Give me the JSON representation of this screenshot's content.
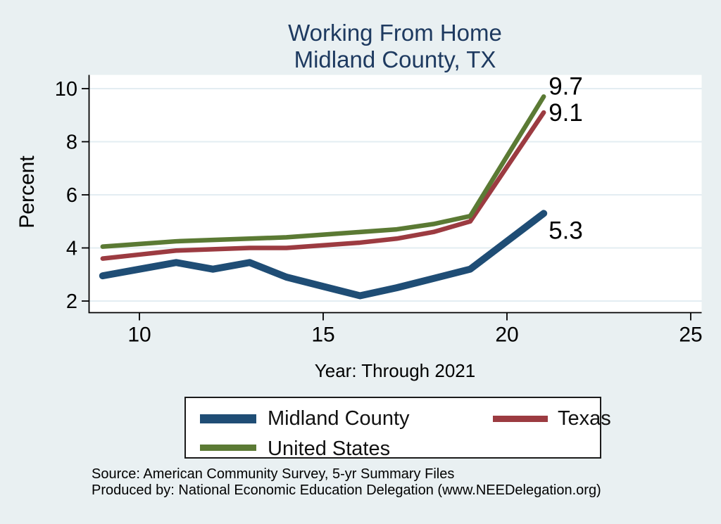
{
  "title": {
    "line1": "Working From Home",
    "line2": "Midland County, TX"
  },
  "colors": {
    "background": "#e9f0f2",
    "plot_background": "#ffffff",
    "gridline": "#e3edf2",
    "axis": "#000000",
    "title_text": "#1e3a60",
    "tick_text": "#000000",
    "midland_county": "#1f4d75",
    "texas": "#9c3b41",
    "united_states": "#5b7a34"
  },
  "chart_data": {
    "type": "line",
    "title": "Working From Home — Midland County, TX",
    "xlabel": "Year: Through 2021",
    "ylabel": "Percent",
    "x": [
      9,
      10,
      11,
      12,
      13,
      14,
      15,
      16,
      17,
      18,
      19,
      20,
      21
    ],
    "x_years_full": [
      2009,
      2010,
      2011,
      2012,
      2013,
      2014,
      2015,
      2016,
      2017,
      2018,
      2019,
      2020,
      2021
    ],
    "series": [
      {
        "name": "Midland County",
        "color": "#1f4d75",
        "values": [
          2.95,
          3.2,
          3.45,
          3.2,
          3.45,
          2.9,
          2.55,
          2.2,
          2.5,
          2.85,
          3.2,
          4.25,
          5.3
        ],
        "end_label": "5.3"
      },
      {
        "name": "Texas",
        "color": "#9c3b41",
        "values": [
          3.6,
          3.75,
          3.9,
          3.95,
          4.0,
          4.0,
          4.1,
          4.2,
          4.35,
          4.6,
          5.0,
          7.05,
          9.1
        ],
        "end_label": "9.1"
      },
      {
        "name": "United States",
        "color": "#5b7a34",
        "values": [
          4.05,
          4.15,
          4.25,
          4.3,
          4.35,
          4.4,
          4.5,
          4.6,
          4.7,
          4.9,
          5.2,
          7.45,
          9.7
        ],
        "end_label": "9.7"
      }
    ],
    "x_ticks": [
      10,
      15,
      20,
      25
    ],
    "x_tick_labels": [
      "10",
      "15",
      "20",
      "25"
    ],
    "y_ticks": [
      2,
      4,
      6,
      8,
      10
    ],
    "y_tick_labels": [
      "2",
      "4",
      "6",
      "8",
      "10"
    ],
    "xlim": [
      8.6,
      25.3
    ],
    "ylim": [
      1.55,
      10.55
    ],
    "grid": true,
    "legend_position": "bottom"
  },
  "legend": {
    "items": [
      {
        "label": "Midland County",
        "color_key": "midland_county"
      },
      {
        "label": "Texas",
        "color_key": "texas"
      },
      {
        "label": "United States",
        "color_key": "united_states"
      }
    ]
  },
  "footer": {
    "line1": "Source: American Community Survey, 5-yr Summary Files",
    "line2": "Produced by: National Economic Education Delegation (www.NEEDelegation.org)"
  }
}
